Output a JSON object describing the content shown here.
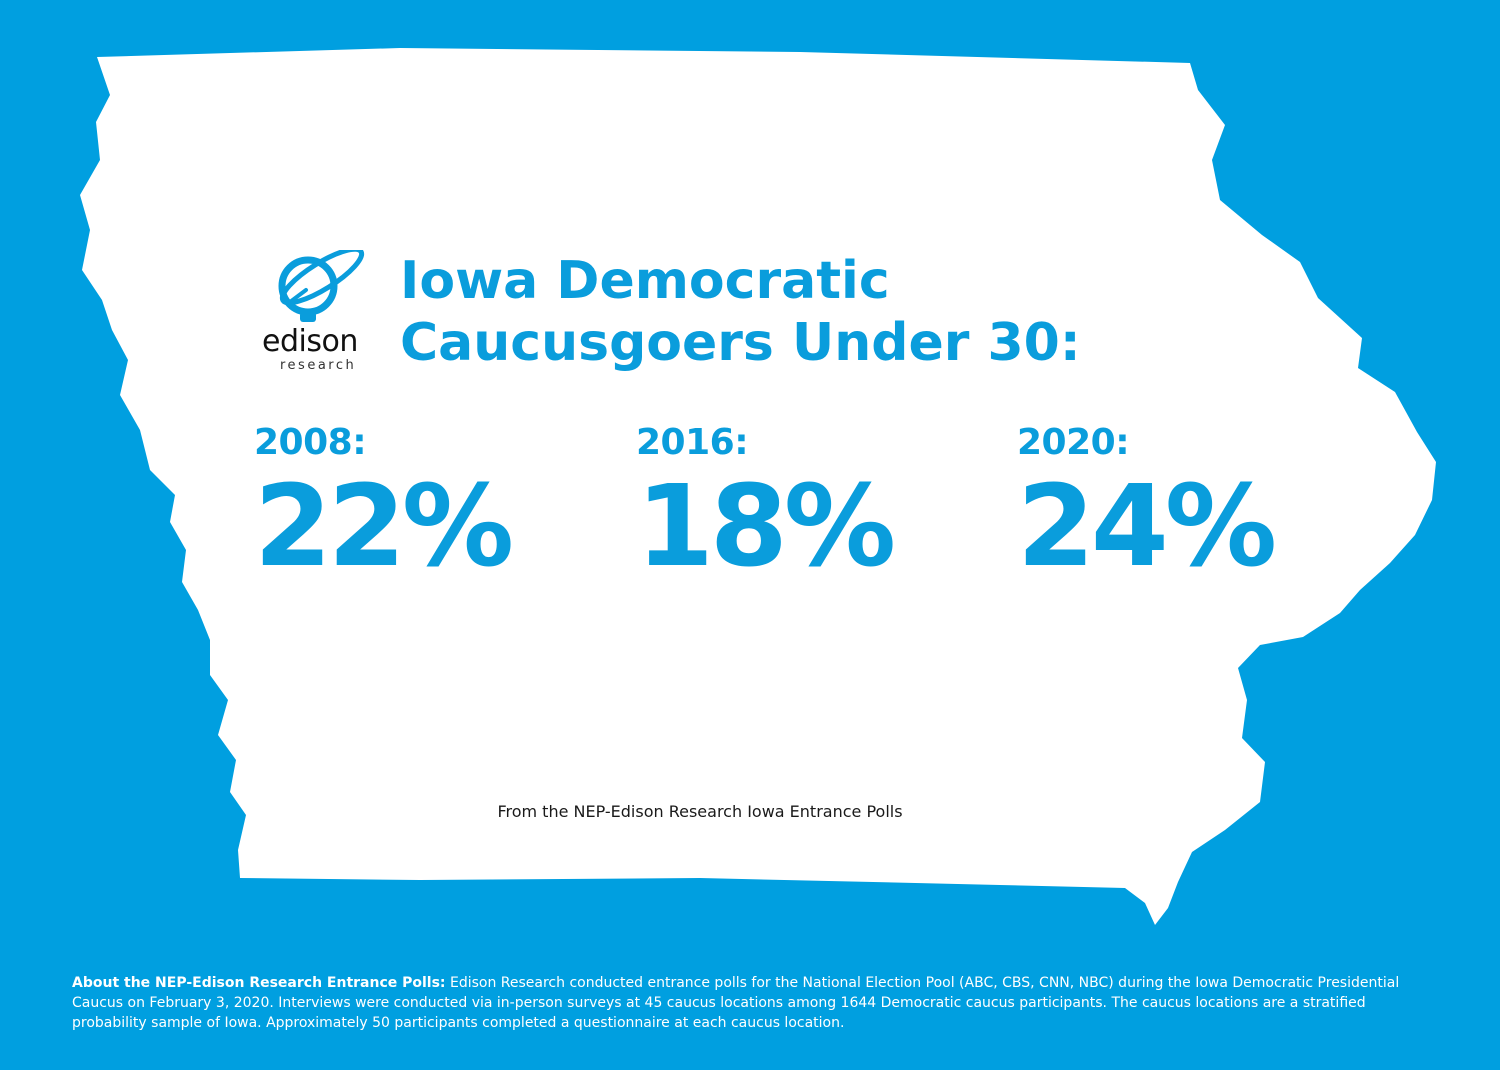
{
  "colors": {
    "background": "#009fe0",
    "map_fill": "#ffffff",
    "accent": "#0a9ddc",
    "logo_text": "#111111"
  },
  "logo": {
    "wordmark": "edison",
    "subtext": "research",
    "icon": "edison-orbit-bulb-icon"
  },
  "title": {
    "line1": "Iowa Democratic",
    "line2": "Caucusgoers Under 30:"
  },
  "stats": [
    {
      "year_label": "2008:",
      "value_label": "22%",
      "value": 22
    },
    {
      "year_label": "2016:",
      "value_label": "18%",
      "value": 18
    },
    {
      "year_label": "2020:",
      "value_label": "24%",
      "value": 24
    }
  ],
  "source_note": "From the NEP-Edison Research Iowa Entrance Polls",
  "about": {
    "heading": "About the NEP-Edison Research Entrance Polls:",
    "body": " Edison Research conducted entrance polls for the National Election Pool (ABC, CBS, CNN, NBC) during the Iowa Democratic Presidential Caucus on February 3, 2020. Interviews were conducted via in-person surveys at 45 caucus locations among 1644 Democratic caucus participants. The caucus locations are a stratified probability sample of Iowa. Approximately 50 participants completed a questionnaire at each caucus location."
  }
}
